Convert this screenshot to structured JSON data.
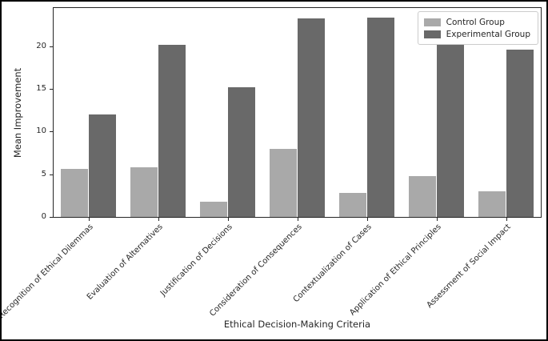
{
  "chart_data": {
    "type": "bar",
    "title": "",
    "xlabel": "Ethical Decision-Making Criteria",
    "ylabel": "Mean Improvement",
    "categories": [
      "Recognition of Ethical Dilemmas",
      "Evaluation of Alternatives",
      "Justification of Decisions",
      "Consideration of Consequences",
      "Contextualization of Cases",
      "Application of Ethical Principles",
      "Assessment of Social Impact"
    ],
    "series": [
      {
        "name": "Control Group",
        "color": "#a9a9a9",
        "values": [
          5.6,
          5.8,
          1.8,
          8.0,
          2.8,
          4.8,
          3.0
        ]
      },
      {
        "name": "Experimental Group",
        "color": "#696969",
        "values": [
          12.0,
          20.2,
          15.2,
          23.3,
          23.4,
          20.7,
          19.6
        ]
      }
    ],
    "yticks": [
      0,
      5,
      10,
      15,
      20
    ],
    "ylim": [
      0,
      24.5
    ],
    "grid": false,
    "legend_position": "upper right",
    "bar_width": 0.4
  },
  "colors": {
    "background": "#ffffff",
    "figure_border": "#000000",
    "spine": "#262626",
    "text": "#262626",
    "legend_border": "#cccccc"
  }
}
